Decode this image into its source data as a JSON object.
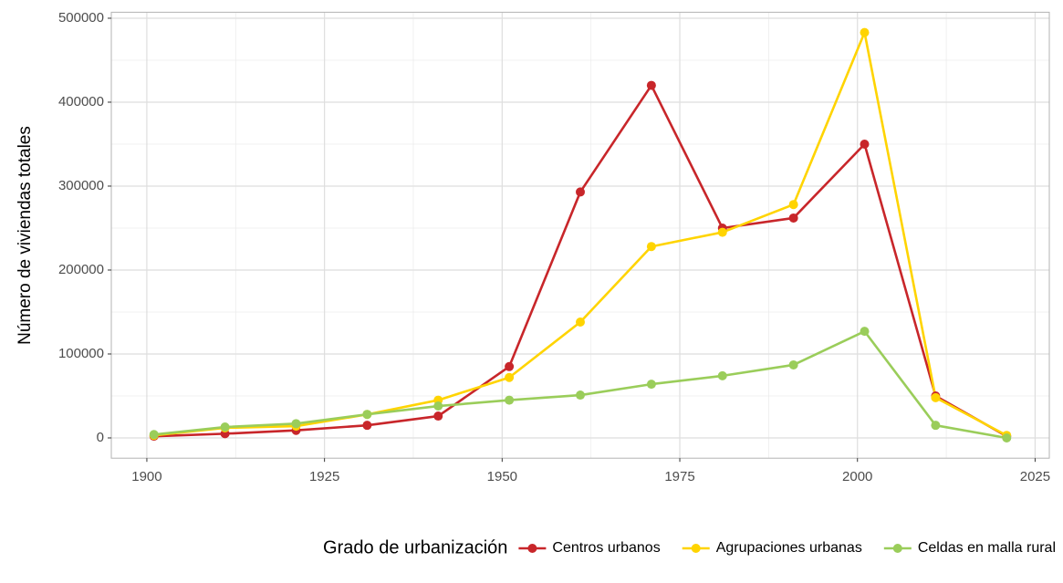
{
  "chart_data": {
    "type": "line",
    "y_label": "Número de viviendas totales",
    "legend_title": "Grado de urbanización",
    "legend": "bottom",
    "grid": true,
    "x": [
      1901,
      1911,
      1921,
      1931,
      1941,
      1951,
      1961,
      1971,
      1981,
      1991,
      2001,
      2011,
      2021
    ],
    "series": [
      {
        "name": "Centros urbanos",
        "color": "#c8262a",
        "values": [
          2000,
          5000,
          9000,
          15000,
          26000,
          85000,
          293000,
          420000,
          250000,
          262000,
          350000,
          50000,
          2000
        ]
      },
      {
        "name": "Agrupaciones urbanas",
        "color": "#ffd400",
        "values": [
          3000,
          12000,
          14000,
          28000,
          45000,
          72000,
          138000,
          228000,
          245000,
          278000,
          483000,
          48000,
          3000
        ]
      },
      {
        "name": "Celdas en malla rural",
        "color": "#9acd5a",
        "values": [
          4000,
          13000,
          17000,
          28000,
          38000,
          45000,
          51000,
          64000,
          74000,
          87000,
          127000,
          15000,
          0
        ]
      }
    ],
    "xlim": [
      1895,
      2027
    ],
    "ylim": [
      -24150,
      507150
    ],
    "xticks": [
      1900,
      1925,
      1950,
      1975,
      2000,
      2025
    ],
    "yticks": [
      0,
      100000,
      200000,
      300000,
      400000,
      500000
    ]
  }
}
